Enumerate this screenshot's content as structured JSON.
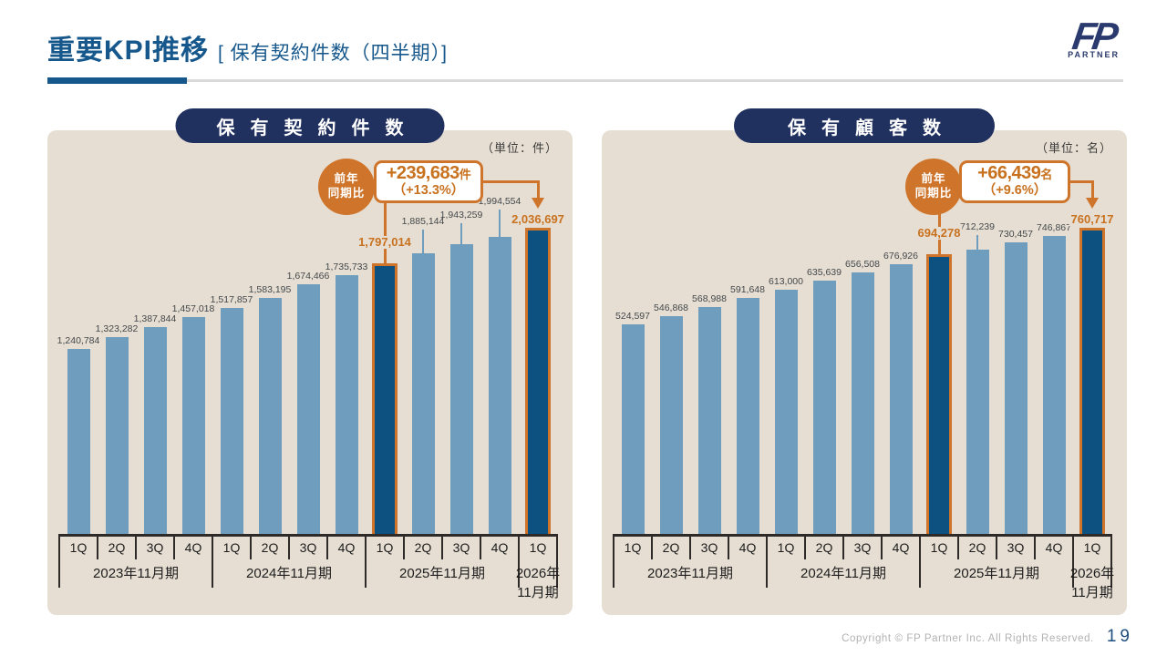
{
  "page": {
    "title_main": "重要KPI推移",
    "title_sub": "[ 保有契約件数（四半期）]",
    "logo": {
      "mark": "FP",
      "text": "PARTNER"
    },
    "footer": {
      "copyright": "Copyright © FP Partner Inc. All Rights Reserved.",
      "page_number": "19"
    }
  },
  "colors": {
    "title_blue": "#16578C",
    "pill_navy": "#20305F",
    "panel_beige": "#E6DED2",
    "bar_light_blue": "#6F9DBE",
    "bar_highlight_navy": "#0D5180",
    "accent_orange": "#CF752B",
    "value_label_orange": "#C8711F",
    "axis_dark": "#2D2A27",
    "footer_gray": "#B3B2B1",
    "page_number_navy": "#1D4E7E"
  },
  "chart_data": [
    {
      "type": "bar",
      "title": "保有契約件数",
      "unit_label": "（単位：件）",
      "ylim": [
        0,
        2100000
      ],
      "grid": false,
      "legend": false,
      "x_groups": [
        {
          "label": "2023年11月期",
          "quarters": [
            "1Q",
            "2Q",
            "3Q",
            "4Q"
          ]
        },
        {
          "label": "2024年11月期",
          "quarters": [
            "1Q",
            "2Q",
            "3Q",
            "4Q"
          ]
        },
        {
          "label": "2025年11月期",
          "quarters": [
            "1Q",
            "2Q",
            "3Q",
            "4Q"
          ]
        },
        {
          "label": "2026年11月期",
          "label_lines": [
            "2026年",
            "11月期"
          ],
          "quarters": [
            "1Q"
          ]
        }
      ],
      "values": [
        1240784,
        1323282,
        1387844,
        1457018,
        1517857,
        1583195,
        1674466,
        1735733,
        1797014,
        1885144,
        1943259,
        1994554,
        2036697
      ],
      "value_labels": [
        "1,240,784",
        "1,323,282",
        "1,387,844",
        "1,457,018",
        "1,517,857",
        "1,583,195",
        "1,674,466",
        "1,735,733",
        "1,797,014",
        "1,885,144",
        "1,943,259",
        "1,994,554",
        "2,036,697"
      ],
      "highlight_indices": [
        8,
        12
      ],
      "yoy_badge": {
        "tag_lines": [
          "前年",
          "同期比"
        ],
        "delta": "+239,683",
        "delta_unit": "件",
        "pct": "（+13.3%）",
        "from_index": 8,
        "to_index": 12
      }
    },
    {
      "type": "bar",
      "title": "保有顧客数",
      "unit_label": "（単位：名）",
      "ylim": [
        0,
        800000
      ],
      "grid": false,
      "legend": false,
      "x_groups": [
        {
          "label": "2023年11月期",
          "quarters": [
            "1Q",
            "2Q",
            "3Q",
            "4Q"
          ]
        },
        {
          "label": "2024年11月期",
          "quarters": [
            "1Q",
            "2Q",
            "3Q",
            "4Q"
          ]
        },
        {
          "label": "2025年11月期",
          "quarters": [
            "1Q",
            "2Q",
            "3Q",
            "4Q"
          ]
        },
        {
          "label": "2026年11月期",
          "label_lines": [
            "2026年",
            "11月期"
          ],
          "quarters": [
            "1Q"
          ]
        }
      ],
      "values": [
        524597,
        546868,
        568988,
        591648,
        613000,
        635639,
        656508,
        676926,
        694278,
        712239,
        730457,
        746867,
        760717
      ],
      "value_labels": [
        "524,597",
        "546,868",
        "568,988",
        "591,648",
        "613,000",
        "635,639",
        "656,508",
        "676,926",
        "694,278",
        "712,239",
        "730,457",
        "746,867",
        "760,717"
      ],
      "highlight_indices": [
        8,
        12
      ],
      "yoy_badge": {
        "tag_lines": [
          "前年",
          "同期比"
        ],
        "delta": "+66,439",
        "delta_unit": "名",
        "pct": "（+9.6%）",
        "from_index": 8,
        "to_index": 12
      }
    }
  ]
}
